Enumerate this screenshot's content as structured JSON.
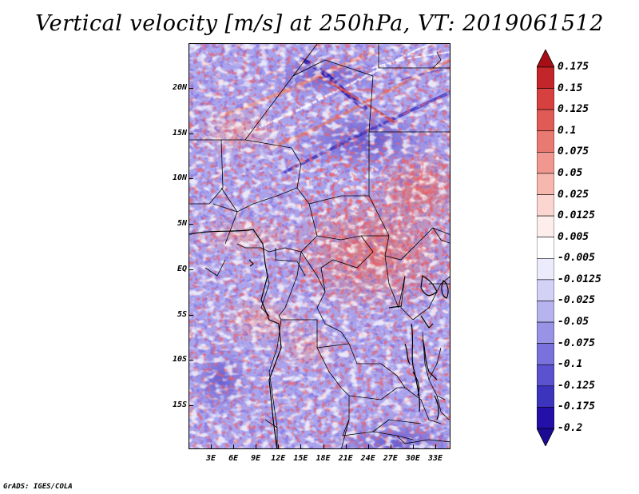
{
  "title": "Vertical velocity [m/s] at 250hPa, VT: 2019061512",
  "footer": "GrADS: IGES/COLA",
  "map": {
    "lat_labels": [
      "20N",
      "15N",
      "10N",
      "5N",
      "EQ",
      "5S",
      "10S",
      "15S"
    ],
    "lon_labels": [
      "3E",
      "6E",
      "9E",
      "12E",
      "15E",
      "18E",
      "21E",
      "24E",
      "27E",
      "30E",
      "33E"
    ]
  },
  "colorbar": {
    "levels": [
      "0.175",
      "0.15",
      "0.125",
      "0.1",
      "0.075",
      "0.05",
      "0.025",
      "0.0125",
      "0.005",
      "-0.005",
      "-0.0125",
      "-0.025",
      "-0.05",
      "-0.075",
      "-0.1",
      "-0.125",
      "-0.175",
      "-0.2"
    ],
    "colors": [
      "#a50f15",
      "#c2262a",
      "#d6403f",
      "#e05a56",
      "#e97a72",
      "#f0988f",
      "#f6b7ae",
      "#fbd6d0",
      "#fdeeec",
      "#ffffff",
      "#ecebfb",
      "#d3d1f6",
      "#b7b3ef",
      "#9993e6",
      "#7a72dc",
      "#5b52cf",
      "#3d34bd",
      "#2410a8",
      "#1a0a94"
    ]
  }
}
